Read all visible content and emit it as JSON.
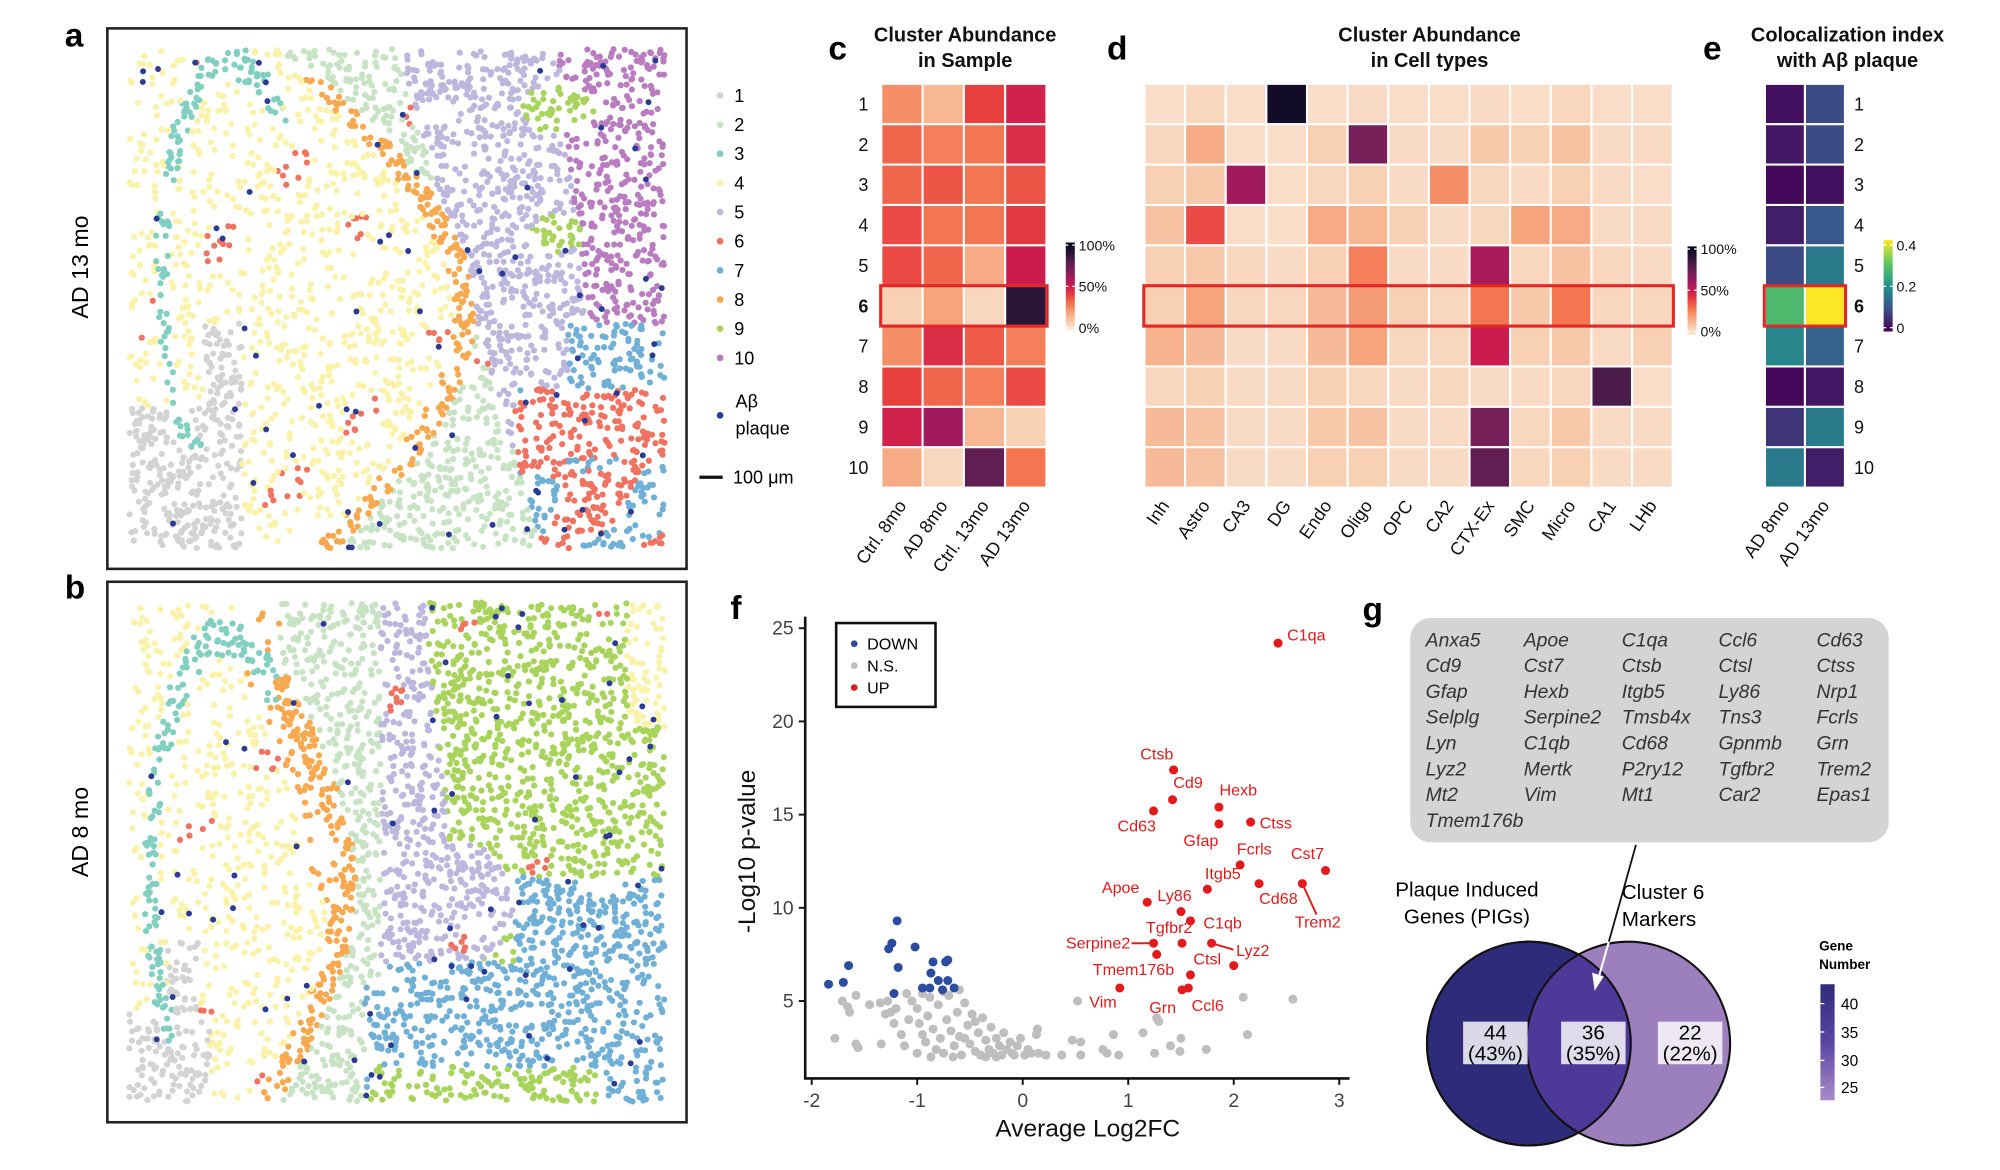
{
  "spatial": {
    "panels": [
      {
        "label": "a",
        "sample": "AD 13 mo"
      },
      {
        "label": "b",
        "sample": "AD 8 mo"
      }
    ],
    "legend": {
      "items": [
        {
          "label": "1",
          "color": "#d3d3d3"
        },
        {
          "label": "2",
          "color": "#c7e3c4"
        },
        {
          "label": "3",
          "color": "#80cfc0"
        },
        {
          "label": "4",
          "color": "#faf2a8"
        },
        {
          "label": "5",
          "color": "#bcb8dd"
        },
        {
          "label": "6",
          "color": "#f07261"
        },
        {
          "label": "7",
          "color": "#70afd6"
        },
        {
          "label": "8",
          "color": "#f8a84e"
        },
        {
          "label": "9",
          "color": "#a8d45c"
        },
        {
          "label": "10",
          "color": "#b97cc0"
        }
      ],
      "plaque_line1": "Aβ",
      "plaque_line2": "plaque",
      "plaque_color": "#2b3a93",
      "scale_bar": "100 μm"
    }
  },
  "chart_data": [
    {
      "type": "heatmap",
      "panel_label": "c",
      "title_lines": [
        "Cluster Abundance",
        "in Sample"
      ],
      "rows": [
        "1",
        "2",
        "3",
        "4",
        "5",
        "6",
        "7",
        "8",
        "9",
        "10"
      ],
      "columns": [
        "Ctrl. 8mo",
        "AD 8mo",
        "Ctrl. 13mo",
        "AD 13mo"
      ],
      "unit": "%",
      "values": [
        [
          25,
          15,
          40,
          48
        ],
        [
          33,
          28,
          30,
          45
        ],
        [
          33,
          36,
          30,
          36
        ],
        [
          38,
          30,
          30,
          42
        ],
        [
          38,
          33,
          18,
          50
        ],
        [
          8,
          20,
          6,
          88
        ],
        [
          25,
          45,
          35,
          28
        ],
        [
          40,
          33,
          28,
          38
        ],
        [
          48,
          60,
          15,
          8
        ],
        [
          18,
          6,
          75,
          30
        ]
      ],
      "colorbar": {
        "range": [
          0,
          100
        ],
        "ticks": [
          "100%",
          "50%",
          "0%"
        ],
        "palette": "rocket"
      },
      "highlighted_row": "6"
    },
    {
      "type": "heatmap",
      "panel_label": "d",
      "title_lines": [
        "Cluster Abundance",
        "in Cell types"
      ],
      "rows": [
        "1",
        "2",
        "3",
        "4",
        "5",
        "6",
        "7",
        "8",
        "9",
        "10"
      ],
      "columns": [
        "Inh",
        "Astro",
        "CA3",
        "DG",
        "Endo",
        "Oligo",
        "OPC",
        "CA2",
        "CTX-Ex",
        "SMC",
        "Micro",
        "CA1",
        "LHb"
      ],
      "unit": "%",
      "values": [
        [
          4,
          6,
          4,
          95,
          4,
          5,
          4,
          4,
          5,
          4,
          6,
          4,
          4
        ],
        [
          6,
          18,
          4,
          4,
          8,
          70,
          5,
          5,
          10,
          8,
          12,
          5,
          5
        ],
        [
          8,
          10,
          60,
          4,
          6,
          8,
          5,
          25,
          6,
          5,
          8,
          5,
          4
        ],
        [
          12,
          38,
          4,
          4,
          18,
          15,
          8,
          5,
          6,
          20,
          18,
          5,
          5
        ],
        [
          8,
          10,
          6,
          5,
          8,
          28,
          5,
          5,
          58,
          6,
          12,
          6,
          5
        ],
        [
          8,
          20,
          6,
          6,
          14,
          22,
          8,
          6,
          30,
          10,
          30,
          6,
          6
        ],
        [
          16,
          14,
          5,
          5,
          14,
          20,
          6,
          6,
          50,
          8,
          10,
          5,
          8
        ],
        [
          6,
          8,
          5,
          5,
          8,
          6,
          5,
          6,
          5,
          5,
          6,
          80,
          4
        ],
        [
          14,
          12,
          5,
          5,
          10,
          12,
          5,
          5,
          70,
          6,
          10,
          5,
          5
        ],
        [
          14,
          12,
          5,
          5,
          8,
          8,
          5,
          5,
          75,
          6,
          8,
          5,
          5
        ]
      ],
      "colorbar": {
        "range": [
          0,
          100
        ],
        "ticks": [
          "100%",
          "50%",
          "0%"
        ],
        "palette": "rocket"
      },
      "highlighted_row": "6"
    },
    {
      "type": "heatmap",
      "panel_label": "e",
      "title_lines": [
        "Colocalization index",
        "with Aβ plaque"
      ],
      "rows": [
        "1",
        "2",
        "3",
        "4",
        "5",
        "6",
        "7",
        "8",
        "9",
        "10"
      ],
      "columns": [
        "AD 8mo",
        "AD 13mo"
      ],
      "values": [
        [
          0.02,
          0.1
        ],
        [
          0.03,
          0.1
        ],
        [
          0.01,
          0.02
        ],
        [
          0.04,
          0.12
        ],
        [
          0.1,
          0.18
        ],
        [
          0.3,
          0.44
        ],
        [
          0.2,
          0.14
        ],
        [
          0.01,
          0.03
        ],
        [
          0.07,
          0.18
        ],
        [
          0.18,
          0.04
        ]
      ],
      "colorbar": {
        "range": [
          0,
          0.44
        ],
        "ticks": [
          "0.4",
          "0.2",
          "0"
        ],
        "palette": "viridis"
      },
      "highlighted_row": "6"
    },
    {
      "type": "scatter",
      "panel_label": "f",
      "xlabel": "Average Log2FC",
      "ylabel": "-Log10 p-value",
      "xlim": [
        -2.1,
        3.1
      ],
      "ylim": [
        1,
        25.6
      ],
      "xticks": [
        "-2",
        "-1",
        "0",
        "1",
        "2",
        "3"
      ],
      "yticks": [
        "5",
        "10",
        "15",
        "20",
        "25"
      ],
      "grid": false,
      "legend_position": "top-left",
      "legend": [
        {
          "name": "DOWN",
          "color": "#2c4ca0"
        },
        {
          "name": "N.S.",
          "color": "#bebebe"
        },
        {
          "name": "UP",
          "color": "#e31a1c"
        }
      ],
      "series": [
        {
          "name": "DOWN",
          "points": [
            [
              -1.84,
              5.9
            ],
            [
              -1.7,
              6.0
            ],
            [
              -1.65,
              6.9
            ],
            [
              -1.19,
              9.3
            ],
            [
              -1.24,
              8.1
            ],
            [
              -1.27,
              7.8
            ],
            [
              -1.02,
              7.9
            ],
            [
              -1.18,
              6.8
            ],
            [
              -0.85,
              7.1
            ],
            [
              -0.71,
              7.2
            ],
            [
              -0.73,
              7.1
            ],
            [
              -0.87,
              6.5
            ],
            [
              -0.8,
              6.1
            ],
            [
              -0.71,
              6.1
            ],
            [
              -0.95,
              5.7
            ],
            [
              -0.88,
              5.7
            ],
            [
              -0.65,
              5.7
            ],
            [
              -1.22,
              5.4
            ],
            [
              -0.76,
              5.6
            ]
          ]
        },
        {
          "name": "N.S.",
          "points": [
            [
              0.52,
              5.0
            ],
            [
              2.09,
              5.2
            ],
            [
              2.56,
              5.1
            ],
            [
              2.13,
              3.2
            ],
            [
              1.74,
              2.4
            ],
            [
              1.5,
              3.0
            ],
            [
              1.4,
              2.6
            ],
            [
              1.25,
              2.2
            ],
            [
              1.14,
              3.3
            ],
            [
              0.86,
              3.2
            ],
            [
              0.91,
              2.1
            ],
            [
              0.76,
              2.4
            ],
            [
              0.55,
              2.8
            ],
            [
              0.47,
              2.9
            ],
            [
              0.55,
              2.1
            ],
            [
              0.37,
              2.1
            ],
            [
              1.27,
              4.1
            ],
            [
              1.29,
              3.9
            ],
            [
              1.49,
              2.3
            ],
            [
              0.8,
              2.2
            ],
            [
              0.22,
              2.1
            ],
            [
              0.15,
              2.2
            ],
            [
              0.13,
              3.2
            ],
            [
              0.14,
              3.5
            ],
            [
              -1.78,
              3.0
            ],
            [
              -1.56,
              2.5
            ],
            [
              -1.58,
              2.7
            ],
            [
              -1.34,
              2.7
            ],
            [
              -1.58,
              5.3
            ],
            [
              -1.71,
              5.0
            ],
            [
              -1.64,
              4.4
            ],
            [
              -1.45,
              4.8
            ],
            [
              -1.66,
              4.7
            ],
            [
              -1.3,
              4.3
            ],
            [
              -1.35,
              4.9
            ],
            [
              -1.2,
              4.6
            ],
            [
              -1.22,
              3.8
            ],
            [
              -1.1,
              5.4
            ],
            [
              -1.05,
              5.0
            ],
            [
              -1.0,
              4.6
            ],
            [
              -0.98,
              3.8
            ],
            [
              -0.95,
              3.2
            ],
            [
              -0.92,
              2.8
            ],
            [
              -0.9,
              4.2
            ],
            [
              -0.88,
              5.2
            ],
            [
              -0.85,
              3.5
            ],
            [
              -0.82,
              2.4
            ],
            [
              -0.8,
              4.8
            ],
            [
              -0.78,
              3.0
            ],
            [
              -0.75,
              2.2
            ],
            [
              -0.72,
              4.0
            ],
            [
              -0.7,
              5.3
            ],
            [
              -0.68,
              3.4
            ],
            [
              -0.65,
              2.6
            ],
            [
              -0.62,
              4.4
            ],
            [
              -0.6,
              3.1
            ],
            [
              -0.58,
              2.1
            ],
            [
              -0.55,
              4.9
            ],
            [
              -0.52,
              3.7
            ],
            [
              -0.5,
              2.7
            ],
            [
              -0.48,
              4.3
            ],
            [
              -0.45,
              2.3
            ],
            [
              -0.42,
              3.3
            ],
            [
              -0.4,
              2.1
            ],
            [
              -0.38,
              4.1
            ],
            [
              -0.35,
              2.9
            ],
            [
              -0.32,
              2.4
            ],
            [
              -0.3,
              3.6
            ],
            [
              -0.28,
              2.2
            ],
            [
              -0.25,
              3.0
            ],
            [
              -0.22,
              2.6
            ],
            [
              -0.2,
              2.1
            ],
            [
              -0.18,
              3.3
            ],
            [
              -0.15,
              2.4
            ],
            [
              -0.12,
              2.8
            ],
            [
              -0.1,
              2.2
            ],
            [
              -0.08,
              2.1
            ],
            [
              -0.05,
              2.6
            ],
            [
              -0.02,
              3.0
            ],
            [
              0.02,
              2.1
            ],
            [
              0.05,
              2.4
            ],
            [
              0.08,
              2.2
            ],
            [
              -1.15,
              3.2
            ],
            [
              -1.12,
              2.6
            ],
            [
              -1.08,
              4.0
            ],
            [
              -1.0,
              2.2
            ],
            [
              -0.95,
              5.4
            ],
            [
              -0.87,
              2.0
            ],
            [
              -0.6,
              5.6
            ],
            [
              -0.75,
              5.5
            ],
            [
              -0.55,
              3.0
            ],
            [
              -0.45,
              3.9
            ],
            [
              -0.66,
              2.0
            ],
            [
              -0.35,
              2.0
            ],
            [
              -0.25,
              2.0
            ],
            [
              -1.25,
              4.4
            ],
            [
              -1.28,
              5.0
            ]
          ]
        },
        {
          "name": "UP",
          "points": [
            {
              "gene": "C1qa",
              "x": 2.42,
              "y": 24.2
            },
            {
              "gene": "Ctsb",
              "x": 1.43,
              "y": 17.4
            },
            {
              "gene": "Cd9",
              "x": 1.42,
              "y": 15.8
            },
            {
              "gene": "Hexb",
              "x": 1.86,
              "y": 15.4
            },
            {
              "gene": "Cd63",
              "x": 1.24,
              "y": 15.2
            },
            {
              "gene": "Gfap",
              "x": 1.86,
              "y": 14.5
            },
            {
              "gene": "Ctss",
              "x": 2.16,
              "y": 14.6
            },
            {
              "gene": "Fcrls",
              "x": 2.06,
              "y": 12.3
            },
            {
              "gene": "Cst7",
              "x": 2.87,
              "y": 12.0
            },
            {
              "gene": "Cd68",
              "x": 2.24,
              "y": 11.3
            },
            {
              "gene": "Trem2",
              "x": 2.65,
              "y": 11.3
            },
            {
              "gene": "Itgb5",
              "x": 1.75,
              "y": 11.0
            },
            {
              "gene": "Apoe",
              "x": 1.18,
              "y": 10.3
            },
            {
              "gene": "Ly86",
              "x": 1.5,
              "y": 9.8
            },
            {
              "gene": "C1qb",
              "x": 1.59,
              "y": 9.3
            },
            {
              "gene": "Serpine2",
              "x": 1.24,
              "y": 8.1
            },
            {
              "gene": "Tgfbr2",
              "x": 1.51,
              "y": 8.1
            },
            {
              "gene": "Lyz2",
              "x": 1.79,
              "y": 8.1
            },
            {
              "gene": "Tmem176b",
              "x": 1.27,
              "y": 7.5
            },
            {
              "gene": "",
              "x": 2.0,
              "y": 6.9
            },
            {
              "gene": "Ctsl",
              "x": 1.59,
              "y": 6.4
            },
            {
              "gene": "Ccl6",
              "x": 1.57,
              "y": 5.7
            },
            {
              "gene": "Grn",
              "x": 1.51,
              "y": 5.6
            },
            {
              "gene": "Vim",
              "x": 0.92,
              "y": 5.7
            }
          ]
        }
      ]
    },
    {
      "type": "venn",
      "panel_label": "g",
      "shared_genes": [
        "Anxa5",
        "Apoe",
        "C1qa",
        "Ccl6",
        "Cd63",
        "Cd9",
        "Cst7",
        "Ctsb",
        "Ctsl",
        "Ctss",
        "Gfap",
        "Hexb",
        "Itgb5",
        "Ly86",
        "Nrp1",
        "Selplg",
        "Serpine2",
        "Tmsb4x",
        "Tns3",
        "Fcrls",
        "Lyn",
        "C1qb",
        "Cd68",
        "Gpnmb",
        "Grn",
        "Lyz2",
        "Mertk",
        "P2ry12",
        "Tgfbr2",
        "Trem2",
        "Mt2",
        "Vim",
        "Mt1",
        "Car2",
        "Epas1",
        "Tmem176b"
      ],
      "sets": [
        {
          "name_lines": [
            "Plaque Induced",
            "Genes (PIGs)"
          ]
        },
        {
          "name_lines": [
            "Cluster 6",
            "Markers"
          ]
        }
      ],
      "regions": [
        {
          "region": "PIGs only",
          "count": "44",
          "percent": "(43%)",
          "color": "#2e2c7a"
        },
        {
          "region": "shared",
          "count": "36",
          "percent": "(35%)",
          "color": "#4d3a98"
        },
        {
          "region": "Cluster 6 only",
          "count": "22",
          "percent": "(22%)",
          "color": "#9c80be"
        }
      ],
      "legend": {
        "title_lines": [
          "Gene",
          "Number"
        ],
        "ticks": [
          "40",
          "35",
          "30",
          "25"
        ]
      }
    }
  ]
}
